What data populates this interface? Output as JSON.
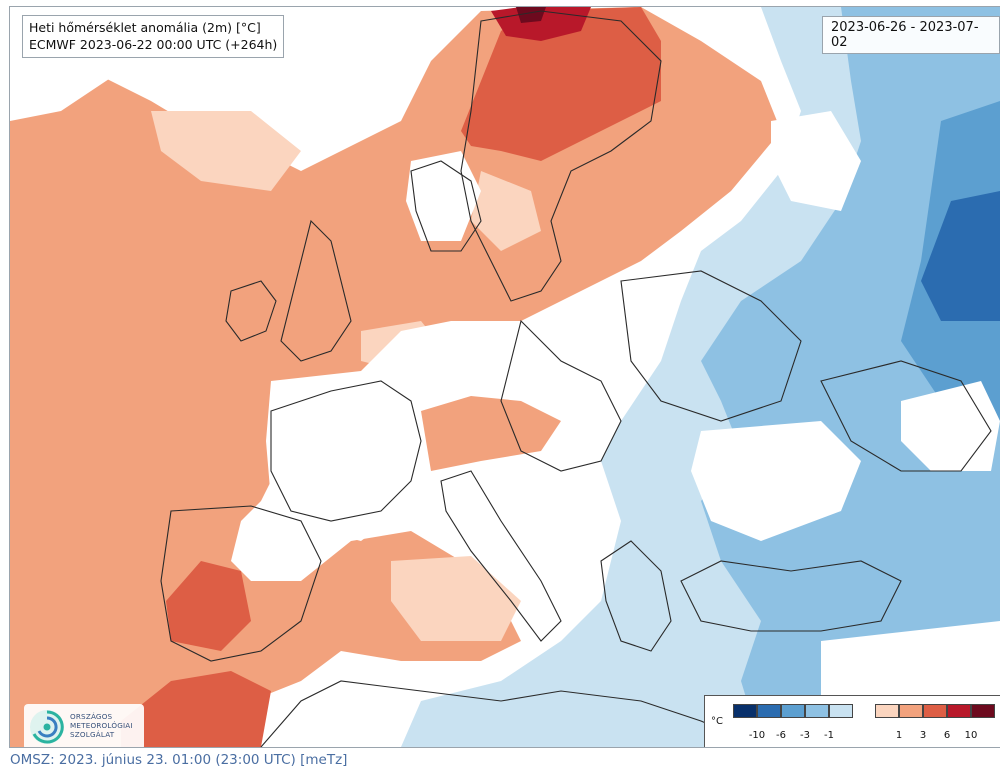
{
  "map_title": {
    "line1": "Heti hőmérséklet anomália (2m) [°C]",
    "line2": "ECMWF 2023-06-22 00:00 UTC (+264h)"
  },
  "date_range": "2023-06-26 - 2023-07-02",
  "legend": {
    "unit": "°C",
    "negative_labels": [
      "-10",
      "-6",
      "-3",
      "-1"
    ],
    "positive_labels": [
      "1",
      "3",
      "6",
      "10"
    ],
    "colors": {
      "cold": [
        "#08306b",
        "#2b6cb0",
        "#5c9fd0",
        "#8ec1e3",
        "#c9e2f1"
      ],
      "warm": [
        "#fbd5bf",
        "#f2a27d",
        "#dd5e45",
        "#b8182a",
        "#6d0a1e"
      ]
    }
  },
  "logo": {
    "lines": [
      "ORSZÁGOS",
      "METEOROLÓGIAI",
      "SZOLGÁLAT"
    ]
  },
  "footer": "OMSZ: 2023. június 23. 01:00 (23:00 UTC) [meTz]"
}
